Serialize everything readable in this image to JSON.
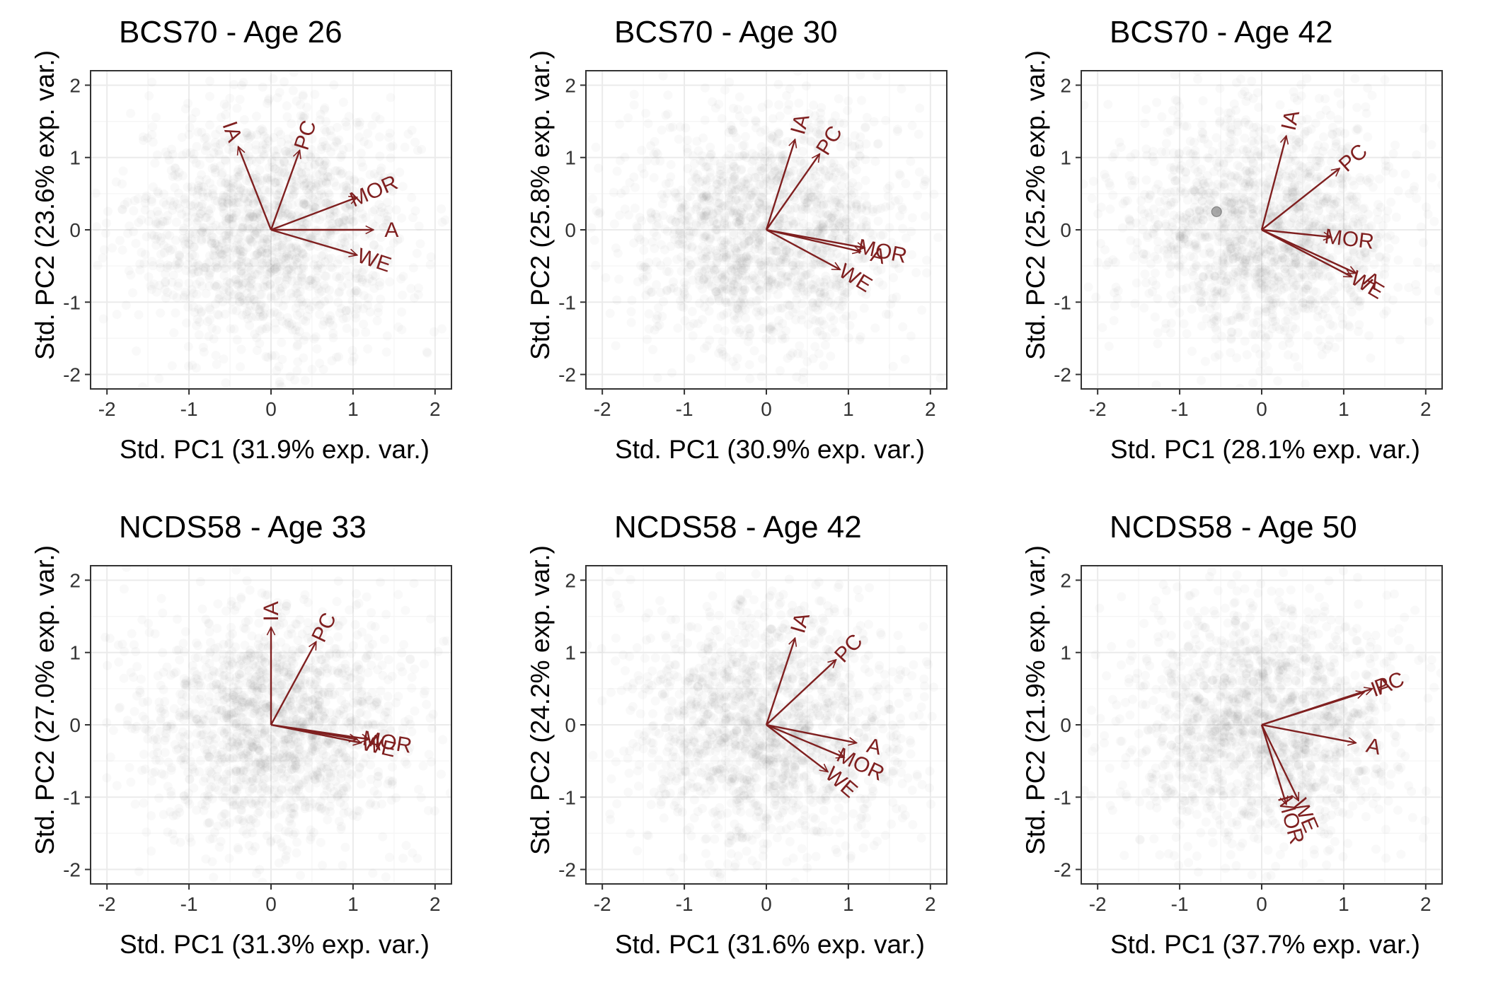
{
  "colors": {
    "arrow": "#7f1f1f",
    "points": "#4d4d4d",
    "grid_major": "#ebebeb",
    "grid_minor": "#f5f5f5",
    "border": "#333333"
  },
  "chart_data": [
    {
      "type": "scatter",
      "title": "BCS70 - Age 26",
      "xlabel": "Std. PC1 (31.9% exp. var.)",
      "ylabel": "Std. PC2 (23.6% exp. var.)",
      "xlim": [
        -2.2,
        2.2
      ],
      "ylim": [
        -2.2,
        2.2
      ],
      "xticks": [
        -2,
        -1,
        0,
        1,
        2
      ],
      "yticks": [
        -2,
        -1,
        0,
        1,
        2
      ],
      "grid": true,
      "points_note": "dense semi-transparent point cloud centred at origin",
      "arrows": [
        {
          "name": "IA",
          "x": -0.4,
          "y": 1.15
        },
        {
          "name": "PC",
          "x": 0.35,
          "y": 1.1
        },
        {
          "name": "MOR",
          "x": 1.05,
          "y": 0.45
        },
        {
          "name": "A",
          "x": 1.25,
          "y": 0.0
        },
        {
          "name": "WE",
          "x": 1.05,
          "y": -0.35
        }
      ]
    },
    {
      "type": "scatter",
      "title": "BCS70 - Age 30",
      "xlabel": "Std. PC1 (30.9% exp. var.)",
      "ylabel": "Std. PC2 (25.8% exp. var.)",
      "xlim": [
        -2.2,
        2.2
      ],
      "ylim": [
        -2.2,
        2.2
      ],
      "xticks": [
        -2,
        -1,
        0,
        1,
        2
      ],
      "yticks": [
        -2,
        -1,
        0,
        1,
        2
      ],
      "grid": true,
      "points_note": "dense semi-transparent point cloud centred at origin",
      "arrows": [
        {
          "name": "IA",
          "x": 0.35,
          "y": 1.25
        },
        {
          "name": "PC",
          "x": 0.65,
          "y": 1.05
        },
        {
          "name": "MOR",
          "x": 1.2,
          "y": -0.25
        },
        {
          "name": "A",
          "x": 1.15,
          "y": -0.3
        },
        {
          "name": "WE",
          "x": 0.9,
          "y": -0.55
        }
      ]
    },
    {
      "type": "scatter",
      "title": "BCS70 - Age 42",
      "xlabel": "Std. PC1 (28.1% exp. var.)",
      "ylabel": "Std. PC2 (25.2% exp. var.)",
      "xlim": [
        -2.2,
        2.2
      ],
      "ylim": [
        -2.2,
        2.2
      ],
      "xticks": [
        -2,
        -1,
        0,
        1,
        2
      ],
      "yticks": [
        -2,
        -1,
        0,
        1,
        2
      ],
      "grid": true,
      "points_note": "sparser semi-transparent point cloud, one darker point near (-0.55, 0.25)",
      "arrows": [
        {
          "name": "IA",
          "x": 0.3,
          "y": 1.3
        },
        {
          "name": "PC",
          "x": 0.95,
          "y": 0.85
        },
        {
          "name": "MOR",
          "x": 0.85,
          "y": -0.1
        },
        {
          "name": "A",
          "x": 1.15,
          "y": -0.6
        },
        {
          "name": "WE",
          "x": 1.1,
          "y": -0.65
        }
      ]
    },
    {
      "type": "scatter",
      "title": "NCDS58 - Age 33",
      "xlabel": "Std. PC1 (31.3% exp. var.)",
      "ylabel": "Std. PC2 (27.0% exp. var.)",
      "xlim": [
        -2.2,
        2.2
      ],
      "ylim": [
        -2.2,
        2.2
      ],
      "xticks": [
        -2,
        -1,
        0,
        1,
        2
      ],
      "yticks": [
        -2,
        -1,
        0,
        1,
        2
      ],
      "grid": true,
      "points_note": "dense semi-transparent point cloud centred at origin",
      "arrows": [
        {
          "name": "IA",
          "x": 0.0,
          "y": 1.35
        },
        {
          "name": "PC",
          "x": 0.55,
          "y": 1.15
        },
        {
          "name": "MOR",
          "x": 1.2,
          "y": -0.2
        },
        {
          "name": "WE",
          "x": 1.1,
          "y": -0.25
        },
        {
          "name": "A",
          "x": 1.05,
          "y": -0.2
        }
      ]
    },
    {
      "type": "scatter",
      "title": "NCDS58 - Age 42",
      "xlabel": "Std. PC1 (31.6% exp. var.)",
      "ylabel": "Std. PC2 (24.2% exp. var.)",
      "xlim": [
        -2.2,
        2.2
      ],
      "ylim": [
        -2.2,
        2.2
      ],
      "xticks": [
        -2,
        -1,
        0,
        1,
        2
      ],
      "yticks": [
        -2,
        -1,
        0,
        1,
        2
      ],
      "grid": true,
      "points_note": "dense semi-transparent point cloud centred at origin",
      "arrows": [
        {
          "name": "IA",
          "x": 0.35,
          "y": 1.2
        },
        {
          "name": "PC",
          "x": 0.85,
          "y": 0.9
        },
        {
          "name": "A",
          "x": 1.1,
          "y": -0.25
        },
        {
          "name": "MOR",
          "x": 0.95,
          "y": -0.45
        },
        {
          "name": "WE",
          "x": 0.75,
          "y": -0.65
        }
      ]
    },
    {
      "type": "scatter",
      "title": "NCDS58 - Age 50",
      "xlabel": "Std. PC1 (37.7% exp. var.)",
      "ylabel": "Std. PC2 (21.9% exp. var.)",
      "xlim": [
        -2.2,
        2.2
      ],
      "ylim": [
        -2.2,
        2.2
      ],
      "xticks": [
        -2,
        -1,
        0,
        1,
        2
      ],
      "yticks": [
        -2,
        -1,
        0,
        1,
        2
      ],
      "grid": true,
      "points_note": "dense semi-transparent point cloud centred at origin",
      "arrows": [
        {
          "name": "IA",
          "x": 1.25,
          "y": 0.45
        },
        {
          "name": "PC",
          "x": 1.35,
          "y": 0.5
        },
        {
          "name": "A",
          "x": 1.15,
          "y": -0.25
        },
        {
          "name": "WE",
          "x": 0.45,
          "y": -1.05
        },
        {
          "name": "MOR",
          "x": 0.3,
          "y": -1.1
        }
      ]
    }
  ]
}
